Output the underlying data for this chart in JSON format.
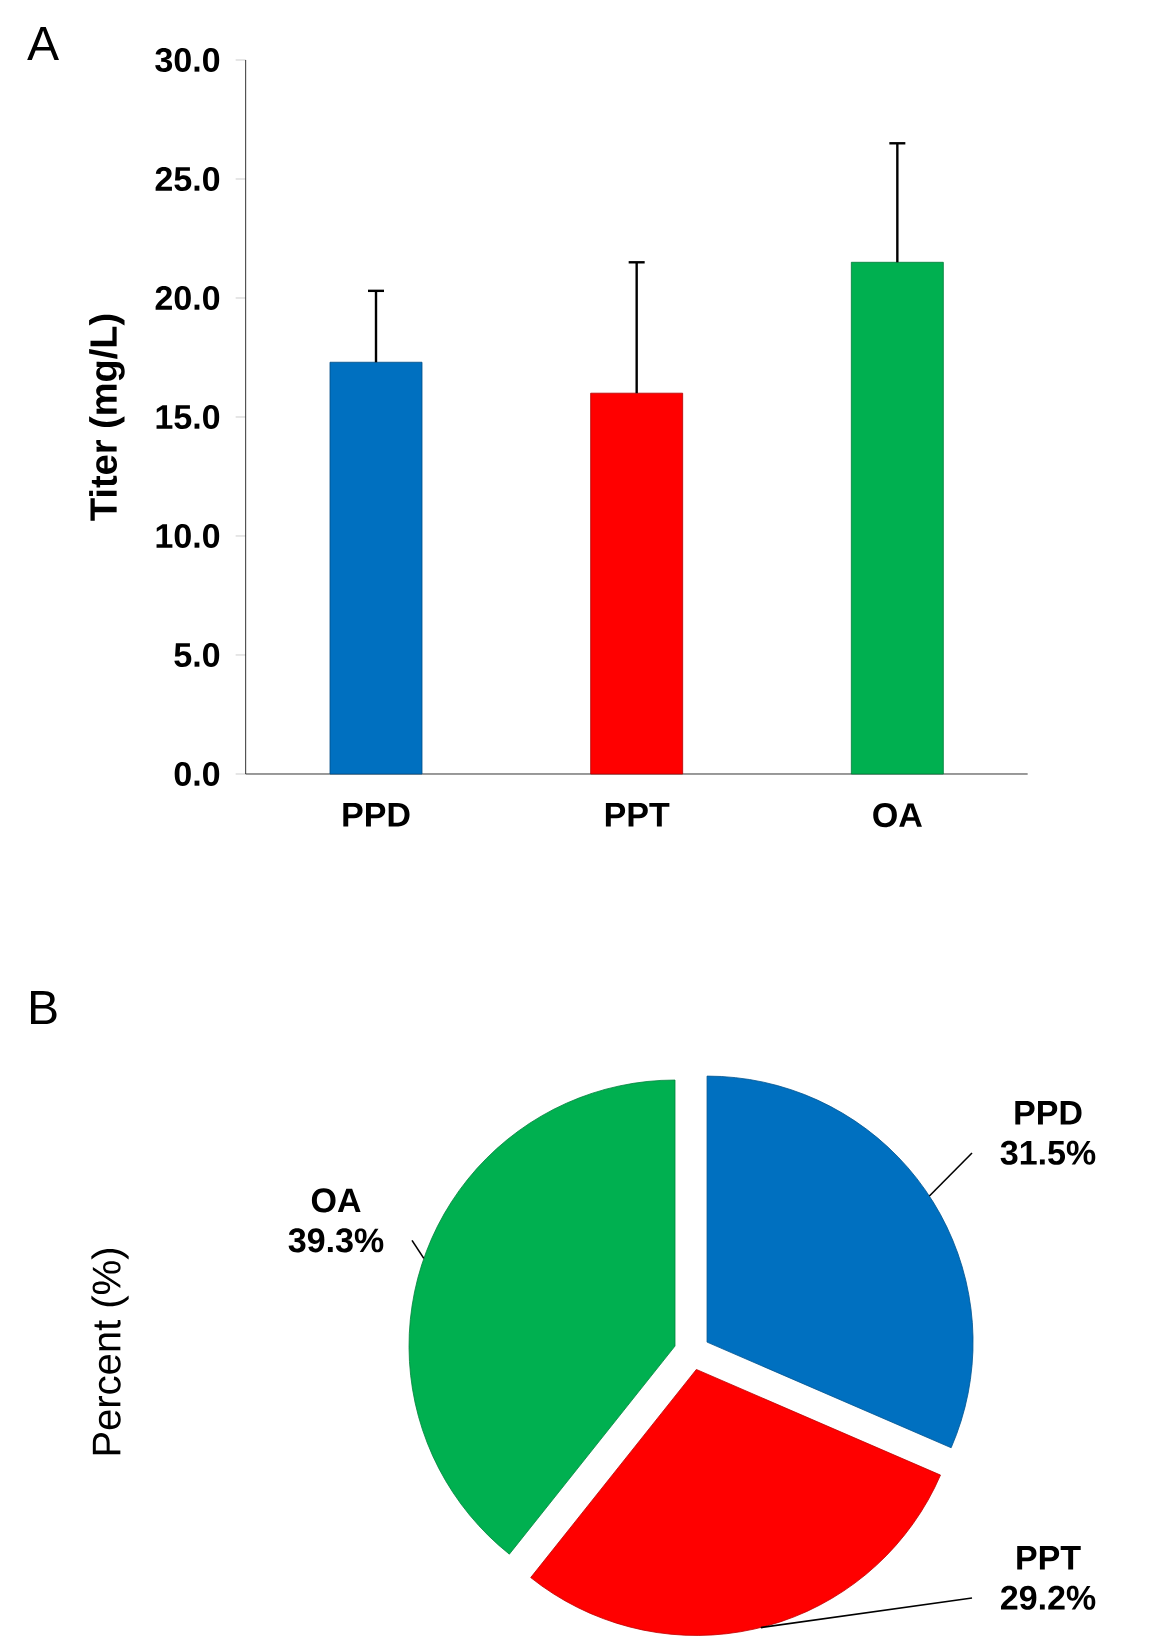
{
  "chart_data": [
    {
      "type": "bar",
      "title": "A",
      "ylabel": "Titer (mg/L)",
      "categories": [
        "PPD",
        "PPT",
        "OA"
      ],
      "values": [
        17.3,
        16.0,
        21.5
      ],
      "errors": [
        3.0,
        5.5,
        5.0
      ],
      "colors": [
        "#0070c0",
        "#ff0000",
        "#00b050"
      ],
      "ylim": [
        0,
        30
      ],
      "yticks": [
        {
          "value": 0,
          "label": "0.0"
        },
        {
          "value": 5,
          "label": "5.0"
        },
        {
          "value": 10,
          "label": "10.0"
        },
        {
          "value": 15,
          "label": "15.0"
        },
        {
          "value": 20,
          "label": "20.0"
        },
        {
          "value": 25,
          "label": "25.0"
        },
        {
          "value": 30,
          "label": "30.0"
        }
      ]
    },
    {
      "type": "pie",
      "title": "B",
      "ylabel": "Percent (%)",
      "categories": [
        "PPD",
        "PPT",
        "OA"
      ],
      "values": [
        31.5,
        29.2,
        39.3
      ],
      "value_labels": [
        "31.5%",
        "29.2%",
        "39.3%"
      ],
      "colors": [
        "#0070c0",
        "#ff0000",
        "#00b050"
      ]
    }
  ]
}
